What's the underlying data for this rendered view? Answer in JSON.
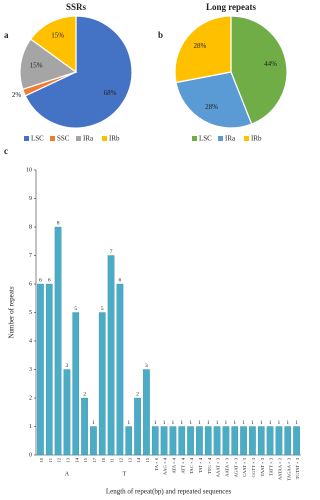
{
  "chart_data": [
    {
      "type": "pie",
      "panel_label": "a",
      "title": "SSRs",
      "categories": [
        "LSC",
        "SSC",
        "IRa",
        "IRb"
      ],
      "values": [
        68,
        2,
        15,
        15
      ],
      "value_labels": [
        "68%",
        "2%",
        "15%",
        "15%"
      ],
      "colors": [
        "#4472c4",
        "#ed7d31",
        "#a5a5a5",
        "#ffc000"
      ],
      "legend": "bottom"
    },
    {
      "type": "pie",
      "panel_label": "b",
      "title": "Long repeats",
      "categories": [
        "LSC",
        "IRa",
        "IRb"
      ],
      "values": [
        44,
        28,
        28
      ],
      "value_labels": [
        "44%",
        "28%",
        "28%"
      ],
      "colors": [
        "#70ad47",
        "#5b9bd5",
        "#ffc000"
      ],
      "legend": "bottom"
    },
    {
      "type": "bar",
      "panel_label": "c",
      "x_label": "Length of repeat(bp) and repeated sequences",
      "y_label": "Number of repeats",
      "categories": [
        "10",
        "11",
        "12",
        "13",
        "14",
        "15",
        "17",
        "10",
        "11",
        "12",
        "13",
        "14",
        "15",
        "TA × 6",
        "AAG × 4",
        "ATA × 4",
        "ATT × 4",
        "TAC × 4",
        "TAT × 4",
        "TTG × 4",
        "AAAT × 3",
        "AATA × 3",
        "AGAT × 3",
        "CAAT × 3",
        "GGTT × 3",
        "TAAT × 3",
        "TATT × 3",
        "AATAA × 3",
        "TAGAA × 3",
        "TGTAT × 3"
      ],
      "group_of": [
        "A",
        "A",
        "A",
        "A",
        "A",
        "A",
        "A",
        "T",
        "T",
        "T",
        "T",
        "T",
        "T",
        null,
        null,
        null,
        null,
        null,
        null,
        null,
        null,
        null,
        null,
        null,
        null,
        null,
        null,
        null,
        null,
        null
      ],
      "values": [
        6,
        6,
        8,
        3,
        5,
        2,
        1,
        5,
        7,
        6,
        1,
        2,
        3,
        1,
        1,
        1,
        1,
        1,
        1,
        1,
        1,
        1,
        1,
        1,
        1,
        1,
        1,
        1,
        1,
        1
      ],
      "color": "#4bacc6",
      "ylim": [
        0,
        10
      ],
      "yticks": [
        0,
        1,
        2,
        3,
        4,
        5,
        6,
        7,
        8,
        9,
        10
      ]
    }
  ]
}
